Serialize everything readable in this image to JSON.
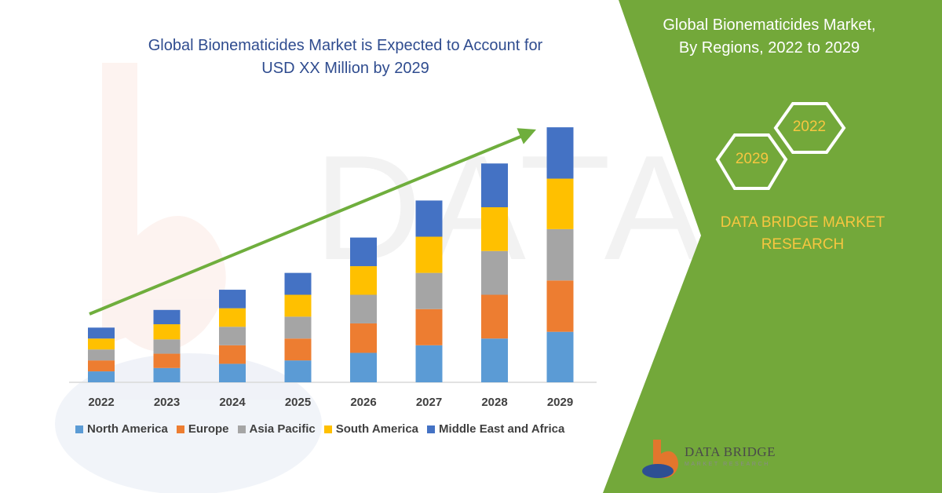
{
  "header": {
    "title_line1": "Global Bionematicides Market is Expected to Account for",
    "title_line2": "USD XX Million by 2029"
  },
  "panel": {
    "title_line1": "Global Bionematicides Market,",
    "title_line2": "By Regions, 2022 to 2029",
    "hex_front": "2029",
    "hex_back": "2022",
    "brand_line1": "DATA BRIDGE MARKET",
    "brand_line2": "RESEARCH",
    "logo_name": "DATA BRIDGE",
    "logo_tagline": "MARKET RESEARCH"
  },
  "colors": {
    "panel_green": "#73a83a",
    "trend_arrow": "#6fae3d",
    "title_blue": "#2f4c8f",
    "accent_yellow": "#f7c640"
  },
  "chart_data": {
    "type": "bar",
    "stacked": true,
    "categories": [
      "2022",
      "2023",
      "2024",
      "2025",
      "2026",
      "2027",
      "2028",
      "2029"
    ],
    "series": [
      {
        "name": "North America",
        "color": "#5b9bd5",
        "values": [
          13,
          17,
          22,
          26,
          35,
          44,
          52,
          60
        ]
      },
      {
        "name": "Europe",
        "color": "#ed7d31",
        "values": [
          13,
          17,
          22,
          26,
          35,
          43,
          52,
          61
        ]
      },
      {
        "name": "Asia Pacific",
        "color": "#a5a5a5",
        "values": [
          13,
          17,
          22,
          26,
          34,
          43,
          52,
          61
        ]
      },
      {
        "name": "South America",
        "color": "#ffc000",
        "values": [
          13,
          18,
          22,
          26,
          34,
          43,
          52,
          60
        ]
      },
      {
        "name": "Middle East and Africa",
        "color": "#4472c4",
        "values": [
          13,
          17,
          22,
          26,
          34,
          43,
          52,
          61
        ]
      }
    ],
    "ylim": [
      0,
      310
    ],
    "trend_arrow": true,
    "grid": false,
    "legend_position": "bottom"
  }
}
